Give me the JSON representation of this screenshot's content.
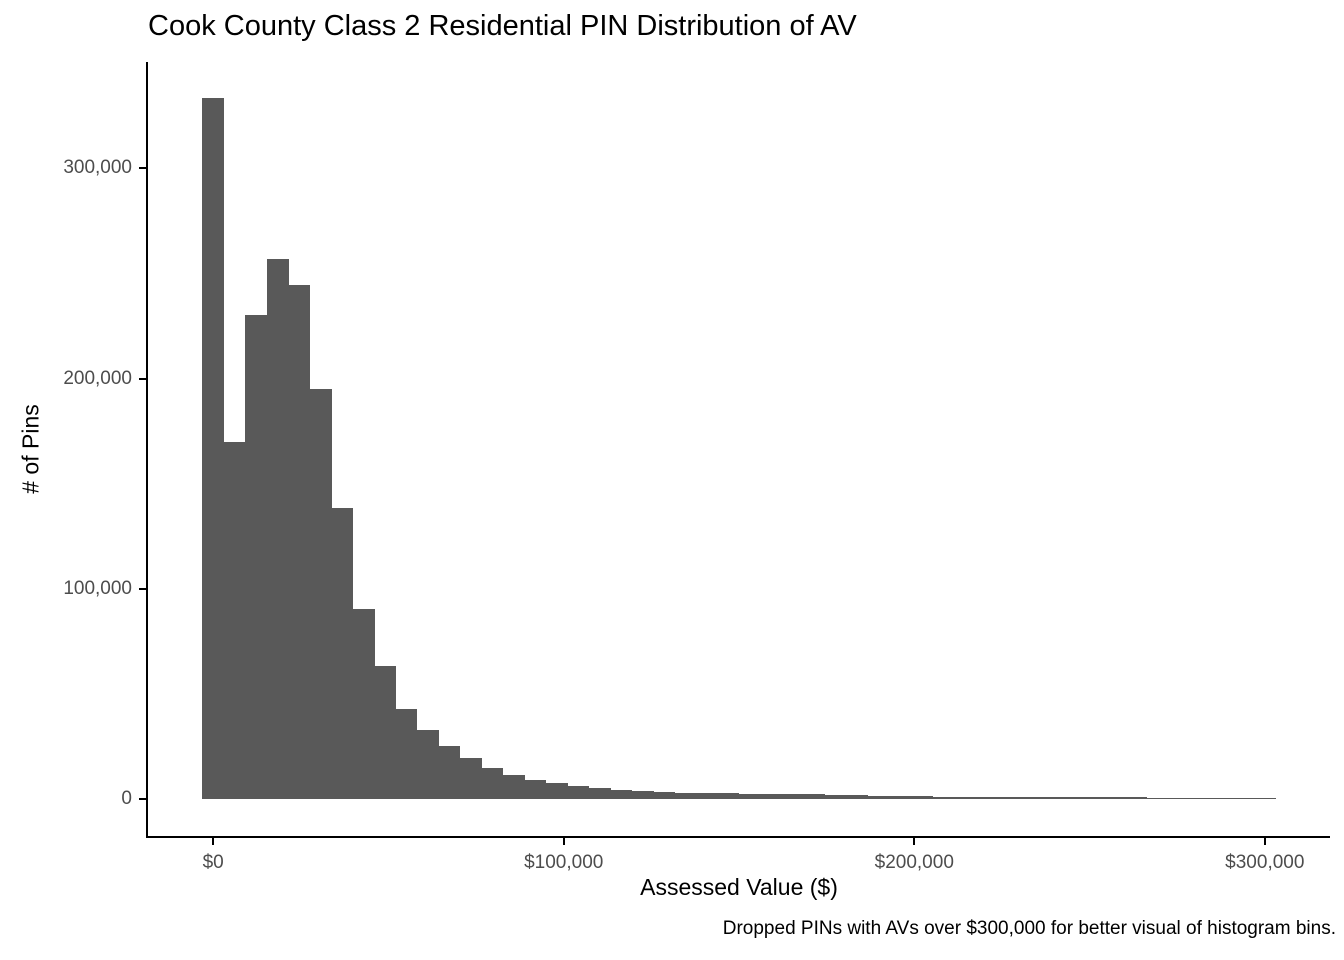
{
  "title": "Cook County Class 2 Residential PIN Distribution of AV",
  "caption": "Dropped PINs with AVs over $300,000 for better visual of histogram bins.",
  "colors": {
    "bar_fill": "#595959",
    "axis_line": "#000000",
    "tick_label": "#4D4D4D",
    "title_text": "#000000",
    "background": "#FFFFFF"
  },
  "chart_data": {
    "type": "bar",
    "subtype": "histogram",
    "title": "Cook County Class 2 Residential PIN Distribution of AV",
    "xlabel": "Assessed Value ($)",
    "ylabel": "# of Pins",
    "grid": false,
    "legend": false,
    "xlim": [
      -18600,
      318600
    ],
    "ylim": [
      -17500,
      350500
    ],
    "bin_width": 6122,
    "x_ticks": [
      {
        "value": 0,
        "label": "$0"
      },
      {
        "value": 100000,
        "label": "$100,000"
      },
      {
        "value": 200000,
        "label": "$200,000"
      },
      {
        "value": 300000,
        "label": "$300,000"
      }
    ],
    "y_ticks": [
      {
        "value": 0,
        "label": "0"
      },
      {
        "value": 100000,
        "label": "100,000"
      },
      {
        "value": 200000,
        "label": "200,000"
      },
      {
        "value": 300000,
        "label": "300,000"
      }
    ],
    "bin_centers": [
      0,
      6122,
      12245,
      18367,
      24490,
      30612,
      36735,
      42857,
      48980,
      55102,
      61224,
      67347,
      73469,
      79592,
      85714,
      91837,
      97959,
      104082,
      110204,
      116327,
      122449,
      128571,
      134694,
      140816,
      146939,
      153061,
      159184,
      165306,
      171429,
      177551,
      183673,
      189796,
      195918,
      202041,
      208163,
      214286,
      220408,
      226531,
      232653,
      238776,
      244898,
      251020,
      257143,
      263265,
      269388,
      275510,
      281633,
      287755,
      293878,
      300000
    ],
    "values": [
      333500,
      170000,
      230000,
      257000,
      244500,
      195000,
      138500,
      90500,
      63500,
      43000,
      33000,
      25500,
      19500,
      15000,
      11700,
      9200,
      7500,
      6300,
      5400,
      4400,
      3800,
      3400,
      3100,
      2900,
      2750,
      2600,
      2500,
      2400,
      2300,
      2200,
      1800,
      1700,
      1600,
      1500,
      1200,
      1100,
      1050,
      1000,
      950,
      900,
      880,
      860,
      840,
      820,
      800,
      780,
      760,
      740,
      720,
      700
    ]
  }
}
